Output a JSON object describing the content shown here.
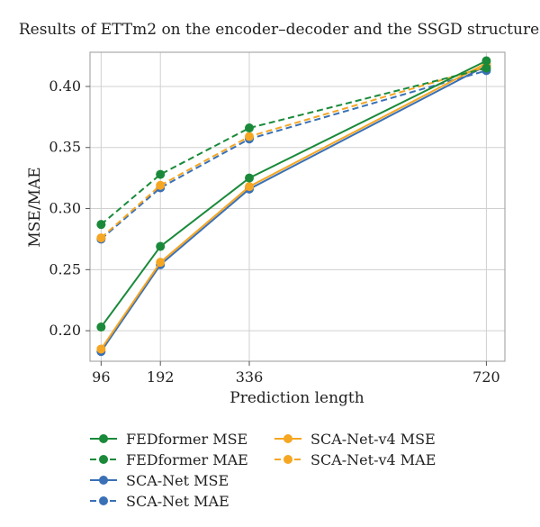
{
  "chart_data": {
    "type": "line",
    "title": "Results of ETTm2 on the encoder–decoder and the SSGD structure",
    "xlabel": "Prediction length",
    "ylabel": "MSE/MAE",
    "x": [
      96,
      192,
      336,
      720
    ],
    "xticks": [
      "96",
      "192",
      "336",
      "720"
    ],
    "xlim": [
      78,
      750
    ],
    "ylim": [
      0.175,
      0.428
    ],
    "yticks": [
      "0.20",
      "0.25",
      "0.30",
      "0.35",
      "0.40"
    ],
    "yticks_values": [
      0.2,
      0.25,
      0.3,
      0.35,
      0.4
    ],
    "grid": true,
    "legend_placement": "bottom",
    "series": [
      {
        "name": "FEDformer MSE",
        "values": [
          0.203,
          0.269,
          0.325,
          0.421
        ],
        "color": "#1a8a3a",
        "dashed": false
      },
      {
        "name": "FEDformer MAE",
        "values": [
          0.287,
          0.328,
          0.366,
          0.415
        ],
        "color": "#1a8a3a",
        "dashed": true
      },
      {
        "name": "SCA-Net MSE",
        "values": [
          0.183,
          0.254,
          0.316,
          0.417
        ],
        "color": "#3a70b5",
        "dashed": false
      },
      {
        "name": "SCA-Net MAE",
        "values": [
          0.275,
          0.317,
          0.357,
          0.413
        ],
        "color": "#3a70b5",
        "dashed": true
      },
      {
        "name": "SCA-Net-v4 MSE",
        "values": [
          0.185,
          0.256,
          0.318,
          0.419
        ],
        "color": "#f5a623",
        "dashed": false
      },
      {
        "name": "SCA-Net-v4 MAE",
        "values": [
          0.276,
          0.319,
          0.359,
          0.416
        ],
        "color": "#f5a623",
        "dashed": true
      }
    ]
  }
}
